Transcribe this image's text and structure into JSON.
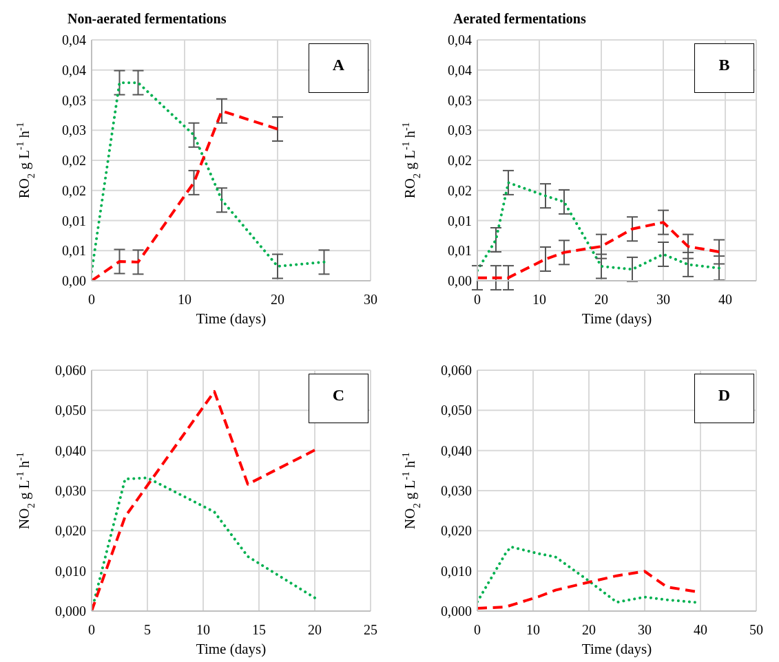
{
  "chart_data": [
    {
      "type": "line",
      "title": "Non-aerated fermentations",
      "xlabel": "Time (days)",
      "ylabel": "RO$_{2}$  g L$^{-1}$ h$^{-1}$",
      "annotations": [
        "A"
      ],
      "grid": true,
      "marker": "none",
      "xlim": [
        0,
        30
      ],
      "xticks": [
        0,
        10,
        20,
        30
      ],
      "ylim": [
        0,
        0.04
      ],
      "yticks": [
        {
          "value": 0,
          "label": "0,00"
        },
        {
          "value": 0.005,
          "label": "0,01"
        },
        {
          "value": 0.01,
          "label": "0,01"
        },
        {
          "value": 0.015,
          "label": "0,02"
        },
        {
          "value": 0.02,
          "label": "0,02"
        },
        {
          "value": 0.025,
          "label": "0,03"
        },
        {
          "value": 0.03,
          "label": "0,03"
        },
        {
          "value": 0.035,
          "label": "0,04"
        },
        {
          "value": 0.04,
          "label": "0,04"
        }
      ],
      "series": [
        {
          "color": "#00b050",
          "line_style": "dotted",
          "x": [
            0,
            3,
            5,
            11,
            14,
            20,
            25
          ],
          "values": [
            0.0015,
            0.0329,
            0.0329,
            0.0242,
            0.0134,
            0.0024,
            0.0031
          ],
          "errors": [
            null,
            0.002,
            0.002,
            0.002,
            0.002,
            0.002,
            0.002
          ]
        },
        {
          "color": "#ff0000",
          "line_style": "dashed",
          "x": [
            0,
            3,
            5,
            11,
            14,
            20
          ],
          "values": [
            0,
            0.0032,
            0.0031,
            0.0163,
            0.0282,
            0.0252
          ],
          "errors": [
            null,
            0.002,
            0.002,
            0.002,
            0.002,
            0.002
          ]
        }
      ]
    },
    {
      "type": "line",
      "title": "Aerated fermentations",
      "xlabel": "Time (days)",
      "ylabel": "RO$_{2}$  g L$^{-1}$ h$^{-1}$",
      "annotations": [
        "B"
      ],
      "grid": true,
      "marker": "none",
      "xlim": [
        0,
        45
      ],
      "xticks": [
        0,
        10,
        20,
        30,
        40
      ],
      "ylim": [
        0,
        0.04
      ],
      "yticks": [
        {
          "value": 0,
          "label": "0,00"
        },
        {
          "value": 0.005,
          "label": "0,01"
        },
        {
          "value": 0.01,
          "label": "0,01"
        },
        {
          "value": 0.015,
          "label": "0,02"
        },
        {
          "value": 0.02,
          "label": "0,02"
        },
        {
          "value": 0.025,
          "label": "0,03"
        },
        {
          "value": 0.03,
          "label": "0,03"
        },
        {
          "value": 0.035,
          "label": "0,04"
        },
        {
          "value": 0.04,
          "label": "0,04"
        }
      ],
      "series": [
        {
          "color": "#00b050",
          "line_style": "dotted",
          "x": [
            0,
            3,
            5,
            11,
            14,
            20,
            25,
            30,
            34,
            39
          ],
          "values": [
            0.0017,
            0.0068,
            0.0163,
            0.0141,
            0.0131,
            0.0024,
            0.0019,
            0.0044,
            0.0027,
            0.0021
          ],
          "errors": [
            null,
            0.002,
            0.002,
            0.002,
            0.002,
            0.002,
            0.002,
            0.002,
            0.002,
            0.002
          ]
        },
        {
          "color": "#ff0000",
          "line_style": "dashed",
          "x": [
            0,
            3,
            5,
            11,
            14,
            20,
            25,
            30,
            34,
            39
          ],
          "values": [
            0.0005,
            0.0005,
            0.0005,
            0.0036,
            0.0047,
            0.0057,
            0.0086,
            0.0097,
            0.0057,
            0.0048
          ],
          "errors": [
            0.002,
            0.002,
            0.002,
            0.002,
            0.002,
            0.002,
            0.002,
            0.002,
            0.002,
            0.002
          ]
        }
      ]
    },
    {
      "type": "line",
      "xlabel": "Time (days)",
      "ylabel": "NO$_{2}$  g L$^{-1}$ h$^{-1}$",
      "annotations": [
        "C"
      ],
      "grid": true,
      "marker": "none",
      "xlim": [
        0,
        25
      ],
      "xticks": [
        0,
        5,
        10,
        15,
        20,
        25
      ],
      "ylim": [
        0,
        0.06
      ],
      "yticks": [
        {
          "value": 0,
          "label": "0,000"
        },
        {
          "value": 0.01,
          "label": "0,010"
        },
        {
          "value": 0.02,
          "label": "0,020"
        },
        {
          "value": 0.03,
          "label": "0,030"
        },
        {
          "value": 0.04,
          "label": "0,040"
        },
        {
          "value": 0.05,
          "label": "0,050"
        },
        {
          "value": 0.06,
          "label": "0,060"
        }
      ],
      "series": [
        {
          "color": "#00b050",
          "line_style": "dotted",
          "x": [
            0,
            3,
            5,
            11,
            14,
            20
          ],
          "values": [
            0,
            0.0329,
            0.0332,
            0.0247,
            0.0136,
            0.0033
          ]
        },
        {
          "color": "#ff0000",
          "line_style": "dashed",
          "x": [
            0,
            3,
            11,
            14,
            20
          ],
          "values": [
            0,
            0.0235,
            0.0547,
            0.0316,
            0.0401
          ]
        }
      ]
    },
    {
      "type": "line",
      "xlabel": "Time (days)",
      "ylabel": "NO$_{2}$  g L$^{-1}$ h$^{-1}$",
      "annotations": [
        "D"
      ],
      "grid": true,
      "marker": "none",
      "xlim": [
        0,
        50
      ],
      "xticks": [
        0,
        10,
        20,
        30,
        40,
        50
      ],
      "ylim": [
        0,
        0.06
      ],
      "yticks": [
        {
          "value": 0,
          "label": "0,000"
        },
        {
          "value": 0.01,
          "label": "0,010"
        },
        {
          "value": 0.02,
          "label": "0,020"
        },
        {
          "value": 0.03,
          "label": "0,030"
        },
        {
          "value": 0.04,
          "label": "0,040"
        },
        {
          "value": 0.05,
          "label": "0,050"
        },
        {
          "value": 0.06,
          "label": "0,060"
        }
      ],
      "series": [
        {
          "color": "#00b050",
          "line_style": "dotted",
          "x": [
            0,
            5,
            6,
            11,
            14,
            20,
            25,
            30,
            34,
            39
          ],
          "values": [
            0.0023,
            0.0142,
            0.016,
            0.0143,
            0.0135,
            0.0075,
            0.0022,
            0.0035,
            0.0028,
            0.0022
          ]
        },
        {
          "color": "#ff0000",
          "line_style": "dashed",
          "x": [
            0,
            5,
            11,
            14,
            20,
            25,
            30,
            34,
            39
          ],
          "values": [
            0.0007,
            0.001,
            0.0036,
            0.0052,
            0.0072,
            0.0088,
            0.0099,
            0.006,
            0.0049
          ]
        }
      ]
    }
  ]
}
